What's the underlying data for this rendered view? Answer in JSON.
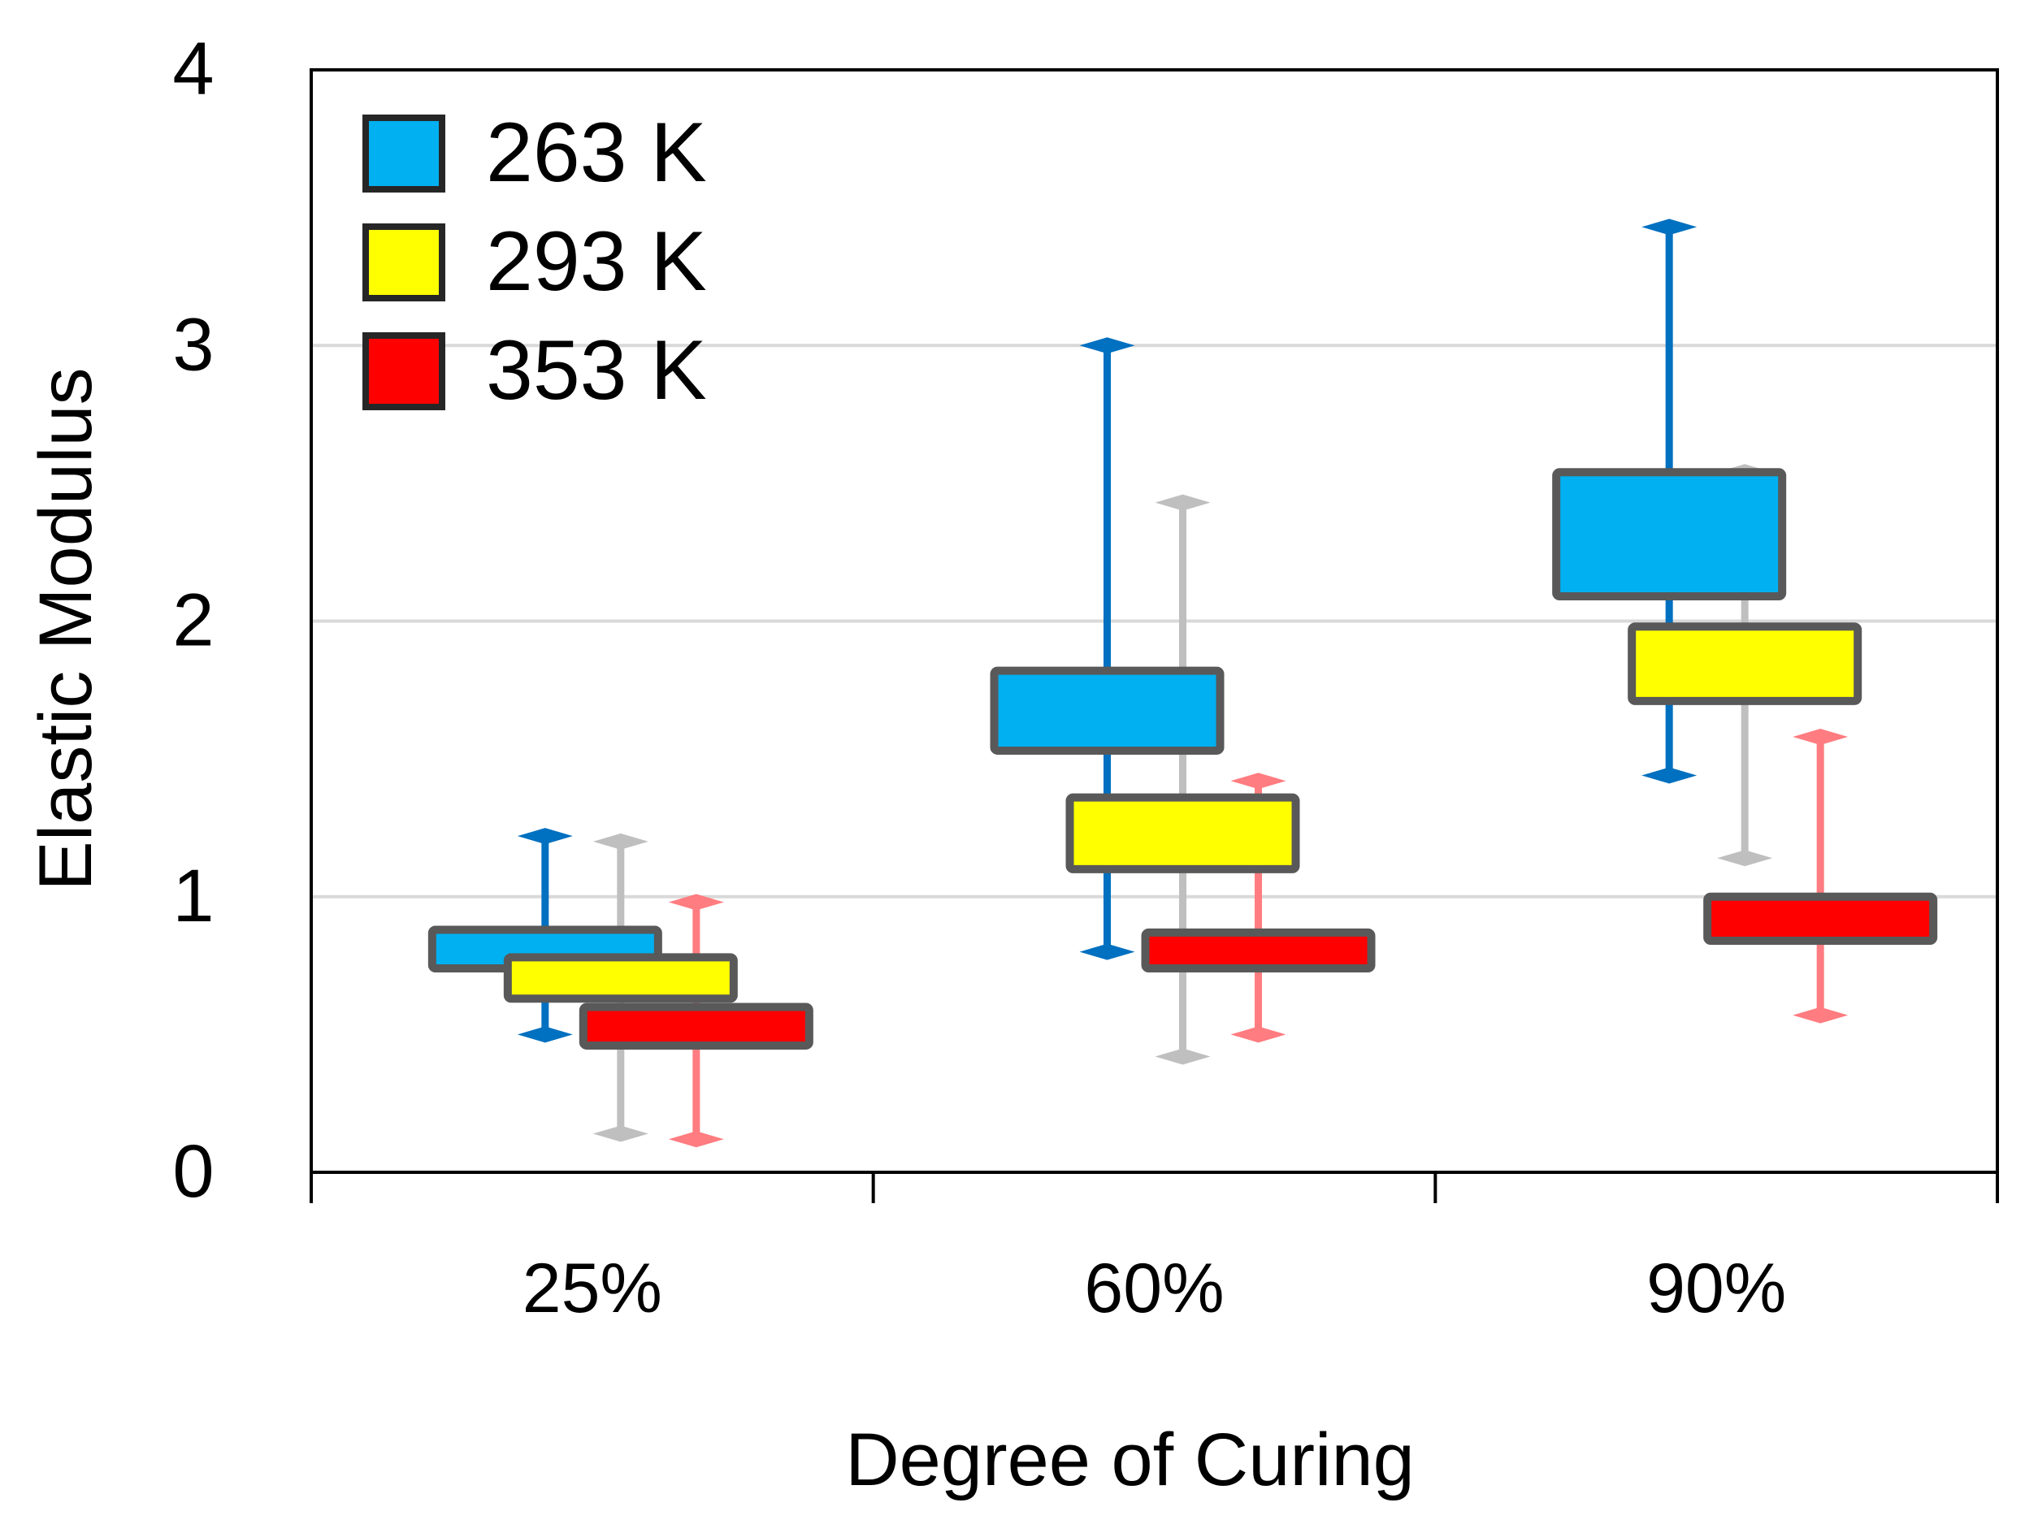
{
  "chart_data": {
    "type": "box",
    "xlabel": "Degree of Curing",
    "ylabel": "Elastic Modulus",
    "ylim": [
      0,
      4
    ],
    "yticks": [
      0,
      1,
      2,
      3,
      4
    ],
    "grid": true,
    "legend_position": "top-left",
    "categories": [
      "25%",
      "60%",
      "90%"
    ],
    "series": [
      {
        "name": "263 K",
        "fill": "#00b0f0",
        "whisker_color": "#0070c0",
        "boxes": [
          {
            "min": 0.5,
            "q1": 0.74,
            "q3": 0.88,
            "max": 1.22
          },
          {
            "min": 0.8,
            "q1": 1.53,
            "q3": 1.82,
            "max": 3.0
          },
          {
            "min": 1.44,
            "q1": 2.09,
            "q3": 2.54,
            "max": 3.43
          }
        ]
      },
      {
        "name": "293 K",
        "fill": "#ffff00",
        "whisker_color": "#bfbfbf",
        "boxes": [
          {
            "min": 0.14,
            "q1": 0.63,
            "q3": 0.78,
            "max": 1.2
          },
          {
            "min": 0.42,
            "q1": 1.1,
            "q3": 1.36,
            "max": 2.43
          },
          {
            "min": 1.14,
            "q1": 1.71,
            "q3": 1.98,
            "max": 2.54
          }
        ]
      },
      {
        "name": "353 K",
        "fill": "#ff0000",
        "whisker_color": "#ff7c80",
        "boxes": [
          {
            "min": 0.12,
            "q1": 0.46,
            "q3": 0.6,
            "max": 0.98
          },
          {
            "min": 0.5,
            "q1": 0.74,
            "q3": 0.87,
            "max": 1.42
          },
          {
            "min": 0.57,
            "q1": 0.84,
            "q3": 1.0,
            "max": 1.58
          }
        ]
      }
    ]
  }
}
